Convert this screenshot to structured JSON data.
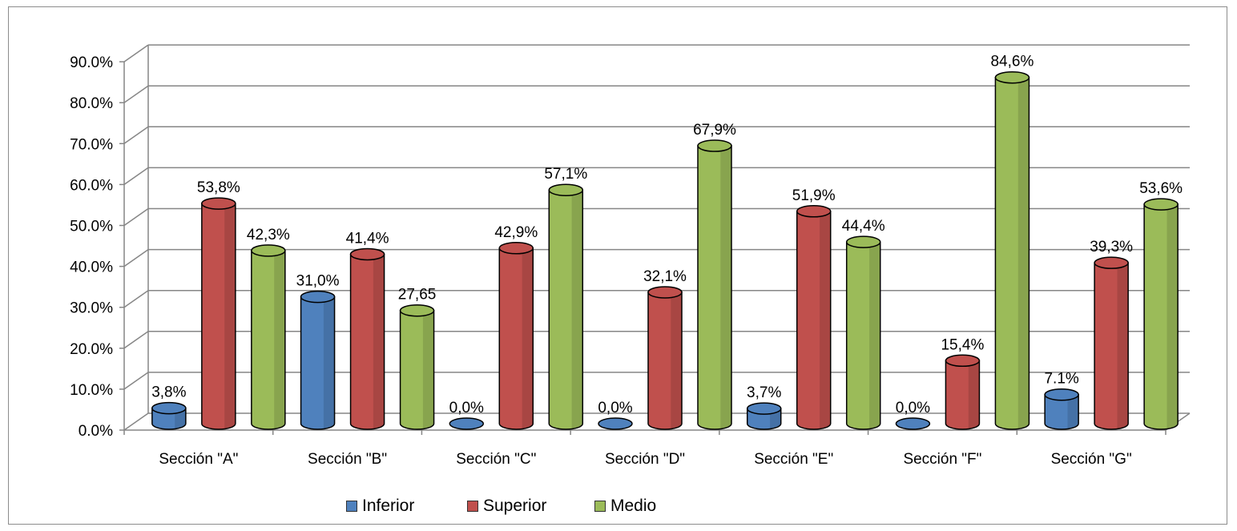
{
  "chart_data": {
    "type": "bar",
    "categories": [
      "Sección \"A\"",
      "Sección \"B\"",
      "Sección \"C\"",
      "Sección \"D\"",
      "Sección \"E\"",
      "Sección \"F\"",
      "Sección \"G\""
    ],
    "series": [
      {
        "name": "Inferior",
        "color": "#4f81bd",
        "values": [
          3.8,
          31.0,
          0.0,
          0.0,
          3.7,
          0.0,
          7.1
        ],
        "labels": [
          "3,8%",
          "31,0%",
          "0,0%",
          "0,0%",
          "3,7%",
          "0,0%",
          "7.1%"
        ]
      },
      {
        "name": "Superior",
        "color": "#c0504d",
        "values": [
          53.8,
          41.4,
          42.9,
          32.1,
          51.9,
          15.4,
          39.3
        ],
        "labels": [
          "53,8%",
          "41,4%",
          "42,9%",
          "32,1%",
          "51,9%",
          "15,4%",
          "39,3%"
        ]
      },
      {
        "name": "Medio",
        "color": "#9bbb59",
        "values": [
          42.3,
          27.65,
          57.1,
          67.9,
          44.4,
          84.6,
          53.6
        ],
        "labels": [
          "42,3%",
          "27,65",
          "57,1%",
          "67,9%",
          "44,4%",
          "84,6%",
          "53,6%"
        ]
      }
    ],
    "y_ticks": [
      "0.0%",
      "10.0%",
      "20.0%",
      "30.0%",
      "40.0%",
      "50.0%",
      "60.0%",
      "70.0%",
      "80.0%",
      "90.0%"
    ],
    "ylim": [
      0,
      90
    ],
    "grid": true,
    "legend_position": "bottom",
    "style": "3d-cylinder"
  }
}
